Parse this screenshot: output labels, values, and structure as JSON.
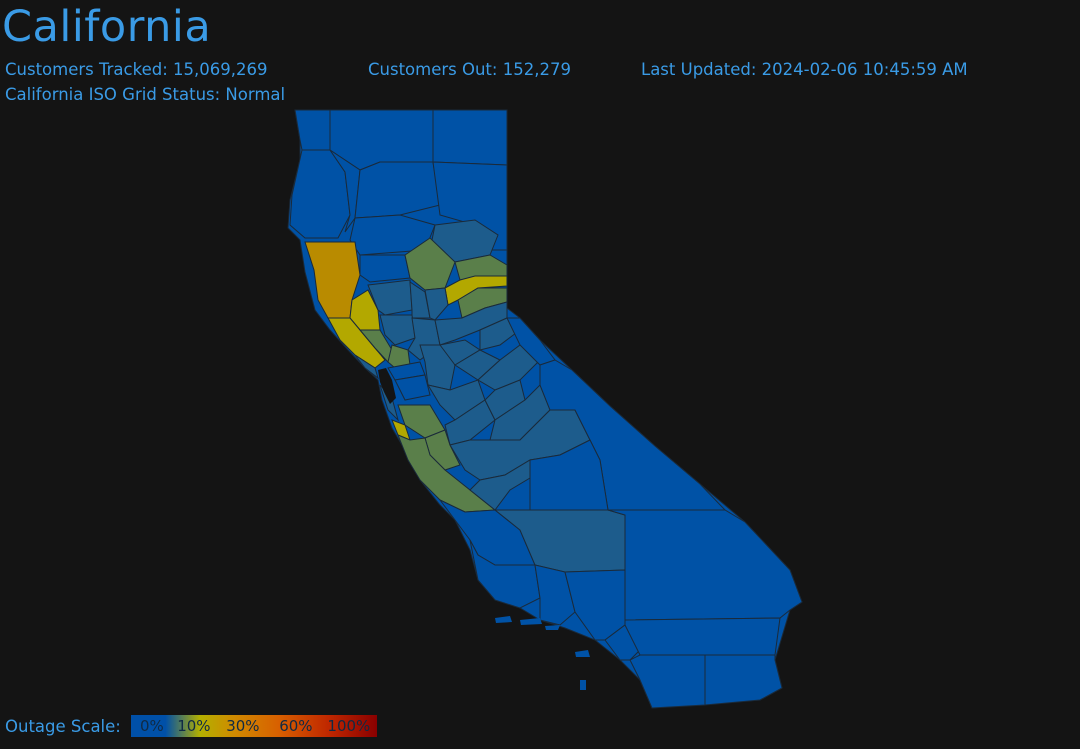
{
  "header": {
    "title": "California",
    "customers_tracked": "Customers Tracked: 15,069,269",
    "customers_out": "Customers Out: 152,279",
    "last_updated": "Last Updated: 2024-02-06 10:45:59 AM",
    "iso_status": "California ISO Grid Status: Normal"
  },
  "legend": {
    "title": "Outage Scale:",
    "stops": [
      "0%",
      "10%",
      "30%",
      "60%",
      "100%"
    ]
  },
  "colors": {
    "background": "#141414",
    "text": "#3a9be6",
    "level_0": "#0052a6",
    "level_low": "#1d5c8c",
    "level_mid": "#5a7f4a",
    "level_high": "#b3a800",
    "level_max": "#b98b00",
    "county_border": "#1a2a3a"
  }
}
